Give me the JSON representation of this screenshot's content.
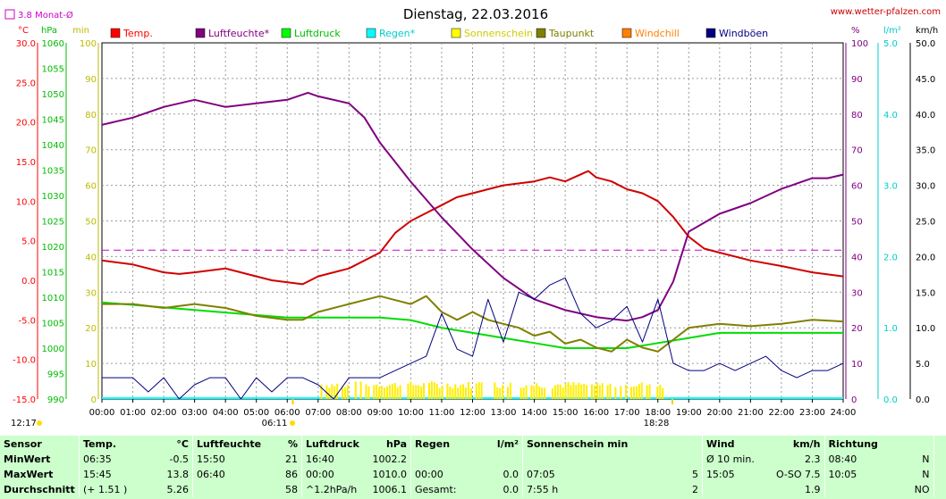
{
  "chart_data": {
    "type": "line",
    "title": "Dienstag, 22.03.2016",
    "watermark": "www.wetter-pfalzen.com",
    "monthly_avg_label": "3.8 Monat-Ø",
    "monthly_avg_value": 3.8,
    "axes": {
      "temp": {
        "unit": "°C",
        "min": -15,
        "max": 30,
        "ticks": [
          "30.0",
          "25.0",
          "20.0",
          "15.0",
          "10.0",
          "5.0",
          "0.0",
          "-5.0",
          "-10.0",
          "-15.0"
        ],
        "color": "#ff0000"
      },
      "press": {
        "unit": "hPa",
        "min": 990,
        "max": 1060,
        "ticks": [
          "1060",
          "1055",
          "1050",
          "1045",
          "1040",
          "1035",
          "1030",
          "1025",
          "1020",
          "1015",
          "1010",
          "1005",
          "1000",
          "995",
          "990"
        ],
        "color": "#00aa00"
      },
      "sun": {
        "unit": "min",
        "min": 0,
        "max": 100,
        "ticks": [
          "100",
          "90",
          "80",
          "70",
          "60",
          "50",
          "40",
          "30",
          "20",
          "10",
          "0"
        ],
        "color": "#cccc00"
      },
      "hum": {
        "unit": "%",
        "min": 0,
        "max": 100,
        "ticks": [
          "100",
          "90",
          "80",
          "70",
          "60",
          "50",
          "40",
          "30",
          "20",
          "10",
          "0"
        ],
        "color": "#800080"
      },
      "rain": {
        "unit": "l/m²",
        "min": 0,
        "max": 5,
        "ticks": [
          "5.0",
          "4.0",
          "3.0",
          "2.0",
          "1.0",
          "0.0"
        ],
        "color": "#00cccc"
      },
      "wind": {
        "unit": "km/h",
        "min": 0,
        "max": 50,
        "ticks": [
          "50.0",
          "45.0",
          "40.0",
          "35.0",
          "30.0",
          "25.0",
          "20.0",
          "15.0",
          "10.0",
          "5.0",
          "0.0"
        ],
        "color": "#000000"
      }
    },
    "x_ticks": [
      "00:00",
      "01:00",
      "02:00",
      "03:00",
      "04:00",
      "05:00",
      "06:00",
      "07:00",
      "08:00",
      "09:00",
      "10:00",
      "11:00",
      "12:00",
      "13:00",
      "14:00",
      "15:00",
      "16:00",
      "17:00",
      "18:00",
      "19:00",
      "20:00",
      "21:00",
      "22:00",
      "23:00",
      "24:00"
    ],
    "x_range": [
      0,
      24
    ],
    "annotations": {
      "day_length": "12:17",
      "sunrise": "06:11",
      "sunrise_h": 6.18,
      "sunset": "18:28",
      "sunset_h": 18.47
    },
    "legend": [
      {
        "name": "Temp.",
        "color": "#ff0000"
      },
      {
        "name": "Luftfeuchte*",
        "color": "#800080"
      },
      {
        "name": "Luftdruck",
        "color": "#00ff00"
      },
      {
        "name": "Regen*",
        "color": "#00ffff"
      },
      {
        "name": "Sonnenschein",
        "color": "#ffff00"
      },
      {
        "name": "Taupunkt",
        "color": "#808000"
      },
      {
        "name": "Windchill",
        "color": "#ff8000"
      },
      {
        "name": "Windböen",
        "color": "#000080"
      }
    ],
    "series": [
      {
        "name": "Temp.",
        "axis": "temp",
        "color": "#d00000",
        "x": [
          0,
          1,
          2,
          2.5,
          3,
          4,
          5,
          5.5,
          6.5,
          7,
          8,
          9,
          9.5,
          10,
          10.5,
          11,
          11.5,
          12,
          12.5,
          13,
          14,
          14.5,
          15,
          15.75,
          16,
          16.5,
          17,
          17.5,
          18,
          18.5,
          19,
          19.5,
          20,
          21,
          22,
          23,
          24
        ],
        "y": [
          2.5,
          2.0,
          1.0,
          0.8,
          1.0,
          1.5,
          0.5,
          0,
          -0.5,
          0.5,
          1.5,
          3.5,
          6.0,
          7.5,
          8.5,
          9.5,
          10.5,
          11.0,
          11.5,
          12.0,
          12.5,
          13.0,
          12.5,
          13.8,
          13.0,
          12.5,
          11.5,
          11.0,
          10.0,
          8.0,
          5.5,
          4.0,
          3.5,
          2.5,
          1.8,
          1.0,
          0.5
        ]
      },
      {
        "name": "Luftfeuchte*",
        "axis": "hum",
        "color": "#800080",
        "x": [
          0,
          1,
          2,
          3,
          4,
          5,
          6,
          6.67,
          7,
          8,
          8.5,
          9,
          10,
          11,
          12,
          13,
          14,
          15,
          16,
          17,
          17.5,
          18,
          18.5,
          19,
          20,
          21,
          22,
          23,
          23.5,
          24
        ],
        "y": [
          77,
          79,
          82,
          84,
          82,
          83,
          84,
          86,
          85,
          83,
          79,
          72,
          61,
          51,
          42,
          34,
          28,
          25,
          23,
          22,
          23,
          25,
          33,
          47,
          52,
          55,
          59,
          62,
          62,
          63
        ]
      },
      {
        "name": "Luftdruck",
        "axis": "press",
        "color": "#00dd00",
        "x": [
          0,
          2,
          4,
          6,
          8,
          9,
          10,
          11,
          12,
          13,
          14,
          15,
          16,
          17,
          18,
          19,
          20,
          21,
          22,
          23,
          24
        ],
        "y": [
          1009,
          1008,
          1007,
          1006,
          1006,
          1006,
          1005.5,
          1004,
          1003,
          1002,
          1001,
          1000,
          1000,
          1000,
          1001,
          1002,
          1003,
          1003,
          1003,
          1003,
          1003
        ]
      },
      {
        "name": "Taupunkt",
        "axis": "temp",
        "color": "#808000",
        "x": [
          0,
          1,
          2,
          3,
          4,
          5,
          6,
          6.5,
          7,
          8,
          9,
          9.5,
          10,
          10.5,
          11,
          11.5,
          12,
          12.5,
          13,
          13.5,
          14,
          14.5,
          15,
          15.5,
          16,
          16.5,
          17,
          17.5,
          18,
          18.5,
          19,
          20,
          21,
          22,
          23,
          24
        ],
        "y": [
          -3.0,
          -3.0,
          -3.5,
          -3.0,
          -3.5,
          -4.5,
          -5.0,
          -5.0,
          -4.0,
          -3.0,
          -2.0,
          -2.5,
          -3.0,
          -2.0,
          -4.0,
          -5.0,
          -4.0,
          -5.0,
          -5.5,
          -6.0,
          -7.0,
          -6.5,
          -8.0,
          -7.5,
          -8.5,
          -9.0,
          -7.5,
          -8.5,
          -9.0,
          -7.5,
          -6.0,
          -5.5,
          -5.8,
          -5.5,
          -5.0,
          -5.2
        ]
      },
      {
        "name": "Windböen",
        "axis": "wind",
        "color": "#000080",
        "x": [
          0,
          1,
          1.5,
          2,
          2.5,
          3,
          3.5,
          4,
          4.5,
          5,
          5.5,
          6,
          6.5,
          7,
          7.5,
          8,
          8.5,
          9,
          9.5,
          10,
          10.5,
          11,
          11.5,
          12,
          12.5,
          13,
          13.5,
          14,
          14.5,
          15,
          15.5,
          16,
          16.5,
          17,
          17.5,
          18,
          18.5,
          19,
          19.5,
          20,
          20.5,
          21,
          21.5,
          22,
          22.5,
          23,
          23.5,
          24
        ],
        "y": [
          3,
          3,
          1,
          3,
          0,
          2,
          3,
          3,
          0,
          3,
          1,
          3,
          3,
          2,
          0,
          3,
          3,
          3,
          4,
          5,
          6,
          12,
          7,
          6,
          14,
          8,
          15,
          14,
          16,
          17,
          12,
          10,
          11,
          13,
          8,
          14,
          5,
          4,
          4,
          5,
          4,
          5,
          6,
          4,
          3,
          4,
          4,
          5
        ]
      }
    ],
    "sunshine": {
      "start": 7.08,
      "end": 18.2,
      "note": "Sonnenschein-Balken (min)"
    },
    "dashed_monthly_avg_temp": 3.8
  },
  "stats": {
    "headers": {
      "sensor": "Sensor",
      "temp": "Temp.",
      "temp_unit": "°C",
      "hum": "Luftfeuchte",
      "hum_unit": "%",
      "press": "Luftdruck",
      "press_unit": "hPa",
      "rain": "Regen",
      "rain_unit": "l/m²",
      "sun": "Sonnenschein min",
      "wind": "Wind",
      "wind_unit": "km/h",
      "dir": "Richtung"
    },
    "rows": [
      {
        "label": "MinWert",
        "temp_t": "06:35",
        "temp_v": "-0.5",
        "hum_t": "15:50",
        "hum_v": "21",
        "press_t": "16:40",
        "press_v": "1002.2",
        "rain_t": "",
        "rain_v": "",
        "sun_t": "",
        "sun_v": "",
        "wind_t": "Ø 10 min.",
        "wind_v": "2.3",
        "dir_t": "08:40",
        "dir_v": "N"
      },
      {
        "label": "MaxWert",
        "temp_t": "15:45",
        "temp_v": "13.8",
        "hum_t": "06:40",
        "hum_v": "86",
        "press_t": "00:00",
        "press_v": "1010.0",
        "rain_t": "00:00",
        "rain_v": "0.0",
        "sun_t": "07:05",
        "sun_v": "5",
        "wind_t": "15:05",
        "wind_v": "O-SO 7.5",
        "dir_t": "10:05",
        "dir_v": "N"
      },
      {
        "label": "Durchschnitt",
        "temp_t": "(+ 1.51 )",
        "temp_v": "5.26",
        "hum_t": "",
        "hum_v": "58",
        "press_t": "^1.2hPa/h",
        "press_v": "1006.1",
        "rain_t": "Gesamt:",
        "rain_v": "0.0",
        "sun_t": "7:55 h",
        "sun_v": "2",
        "wind_t": "",
        "wind_v": "1.9",
        "dir_t": "",
        "dir_v": "NO"
      }
    ]
  }
}
